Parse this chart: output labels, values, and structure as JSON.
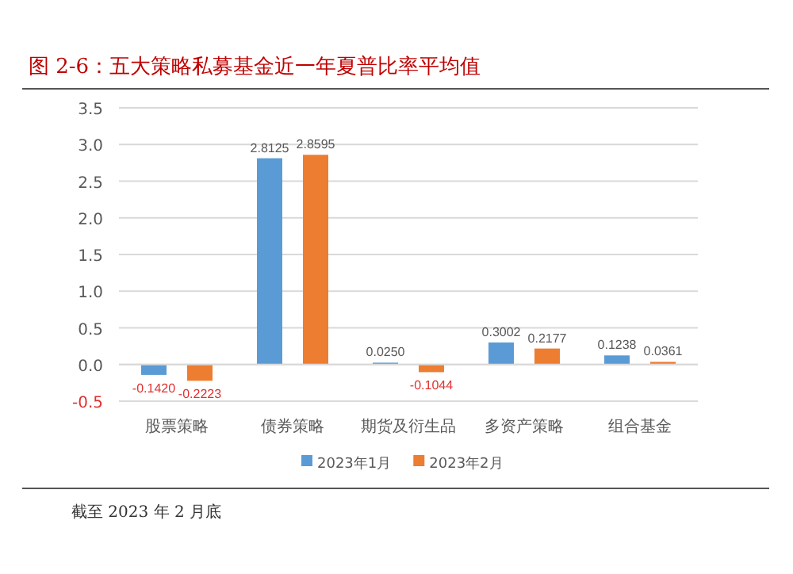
{
  "chart_data": {
    "type": "bar",
    "title": "图 2-6：五大策略私募基金近一年夏普比率平均值",
    "categories": [
      "股票策略",
      "债券策略",
      "期货及衍生品",
      "多资产策略",
      "组合基金"
    ],
    "series": [
      {
        "name": "2023年1月",
        "color": "#5b9bd5",
        "values": [
          -0.142,
          2.8125,
          0.025,
          0.3002,
          0.1238
        ],
        "value_labels": [
          "-0.1420",
          "2.8125",
          "0.0250",
          "0.3002",
          "0.1238"
        ]
      },
      {
        "name": "2023年2月",
        "color": "#ed7d31",
        "values": [
          -0.2223,
          2.8595,
          -0.1044,
          0.2177,
          0.0361
        ],
        "value_labels": [
          "-0.2223",
          "2.8595",
          "-0.1044",
          "0.2177",
          "0.0361"
        ]
      }
    ],
    "ylim": [
      -0.5,
      3.5
    ],
    "yticks": [
      {
        "value": -0.5,
        "label": "-0.5"
      },
      {
        "value": 0,
        "label": "0.0"
      },
      {
        "value": 0.5,
        "label": "0.5"
      },
      {
        "value": 1,
        "label": "1.0"
      },
      {
        "value": 1.5,
        "label": "1.5"
      },
      {
        "value": 2,
        "label": "2.0"
      },
      {
        "value": 2.5,
        "label": "2.5"
      },
      {
        "value": 3,
        "label": "3.0"
      },
      {
        "value": 3.5,
        "label": "3.5"
      }
    ],
    "grid": "y",
    "legend": "bottom",
    "annotations": [
      "截至 2023 年 2 月底"
    ]
  }
}
